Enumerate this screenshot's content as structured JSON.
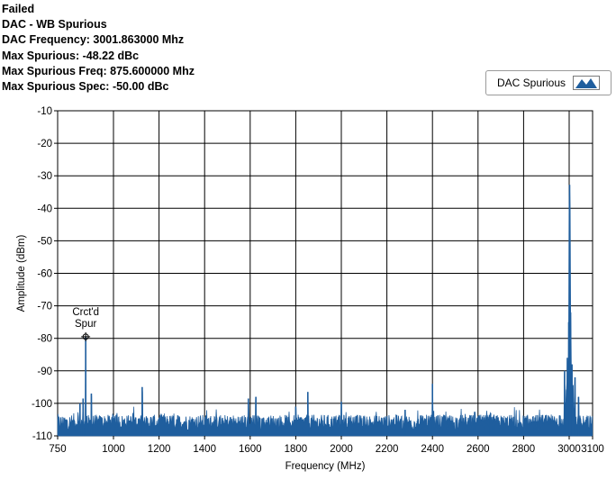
{
  "header": {
    "status": "Failed",
    "test_name": "DAC - WB Spurious",
    "dac_frequency": "DAC Frequency: 3001.863000 Mhz",
    "max_spurious": "Max Spurious: -48.22 dBc",
    "max_spurious_freq": "Max Spurious Freq: 875.600000 Mhz",
    "max_spurious_spec": "Max Spurious Spec: -50.00 dBc"
  },
  "legend": {
    "label": "DAC Spurious",
    "color": "#1f5e9e"
  },
  "chart_data": {
    "type": "line",
    "xlabel": "Frequency (MHz)",
    "ylabel": "Amplitude (dBm)",
    "xlim": [
      750,
      3100
    ],
    "ylim": [
      -110,
      -10
    ],
    "grid": true,
    "x_ticks": [
      750,
      1000,
      1200,
      1400,
      1600,
      1800,
      2000,
      2200,
      2400,
      2600,
      2800,
      3000,
      3100
    ],
    "x_tick_labels": [
      "750",
      "1000",
      "1200",
      "1400",
      "1600",
      "1800",
      "2000",
      "2200",
      "2400",
      "2600",
      "2800",
      "3000",
      "3100"
    ],
    "y_ticks": [
      -10,
      -20,
      -30,
      -40,
      -50,
      -60,
      -70,
      -80,
      -90,
      -100,
      -110
    ],
    "y_tick_labels": [
      "-10",
      "-20",
      "-30",
      "-40",
      "-50",
      "-60",
      "-70",
      "-80",
      "-90",
      "-100",
      "-110"
    ],
    "series": [
      {
        "name": "DAC Spurious",
        "color": "#1f5e9e",
        "noise_floor_dbm": -106,
        "peaks": [
          {
            "x": 850,
            "y": -100
          },
          {
            "x": 864,
            "y": -98.5
          },
          {
            "x": 875.6,
            "y": -79.5
          },
          {
            "x": 901,
            "y": -97
          },
          {
            "x": 1126,
            "y": -95
          },
          {
            "x": 1592,
            "y": -98.5
          },
          {
            "x": 1625,
            "y": -98
          },
          {
            "x": 1800,
            "y": -101
          },
          {
            "x": 1853,
            "y": -96.5
          },
          {
            "x": 2000,
            "y": -99.5
          },
          {
            "x": 2280,
            "y": -102
          },
          {
            "x": 2400,
            "y": -94
          },
          {
            "x": 2655,
            "y": -103
          },
          {
            "x": 2980,
            "y": -90
          },
          {
            "x": 2992,
            "y": -86
          },
          {
            "x": 2998,
            "y": -75
          },
          {
            "x": 3001.863,
            "y": -32.8
          },
          {
            "x": 3006,
            "y": -72
          },
          {
            "x": 3012,
            "y": -88
          },
          {
            "x": 3025,
            "y": -92
          },
          {
            "x": 3040,
            "y": -98
          }
        ]
      }
    ],
    "annotations": [
      {
        "x": 875.6,
        "y": -79.5,
        "text_line1": "Crct'd",
        "text_line2": "Spur"
      }
    ]
  }
}
